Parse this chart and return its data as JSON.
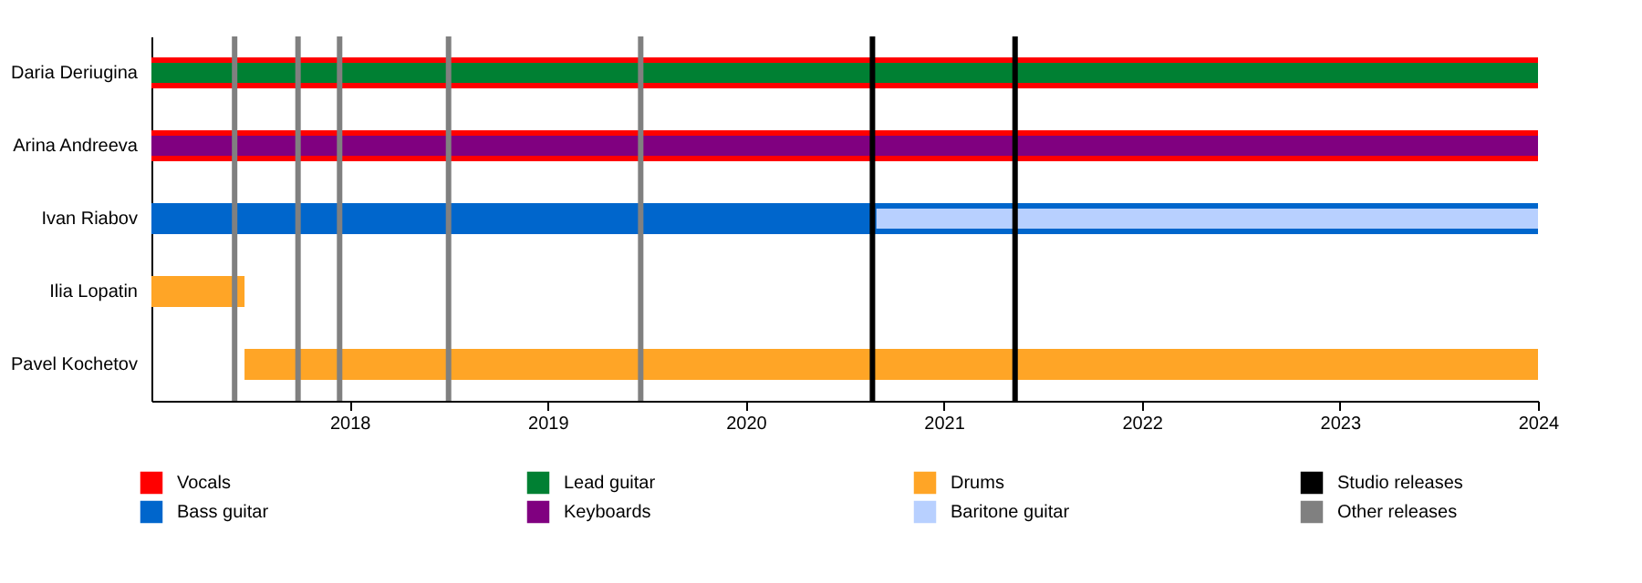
{
  "chart_data": {
    "type": "bar",
    "orientation": "horizontal",
    "categories": [
      "Daria Deriugina",
      "Arina Andreeva",
      "Ivan Riabov",
      "Ilia Lopatin",
      "Pavel Kochetov"
    ],
    "series": [
      {
        "name": "Vocals",
        "color": "#ff0000",
        "base": [
          2017,
          2017,
          null,
          null,
          null
        ],
        "values": [
          7,
          7,
          null,
          null,
          null
        ]
      },
      {
        "name": "Bass guitar",
        "color": "#0066cc",
        "base": [
          null,
          null,
          2017,
          null,
          null
        ],
        "values": [
          null,
          null,
          7,
          null,
          null
        ]
      },
      {
        "name": "Lead guitar",
        "color": "#008033",
        "base": [
          2017,
          null,
          null,
          null,
          null
        ],
        "values": [
          7,
          null,
          null,
          null,
          null
        ]
      },
      {
        "name": "Keyboards",
        "color": "#800080",
        "base": [
          null,
          2017,
          null,
          null,
          null
        ],
        "values": [
          null,
          7,
          null,
          null,
          null
        ]
      },
      {
        "name": "Drums",
        "color": "#ffa526",
        "base": [
          null,
          null,
          null,
          2017,
          2017.47
        ],
        "values": [
          null,
          null,
          null,
          0.47,
          6.53
        ]
      },
      {
        "name": "Baritone guitar",
        "color": "#b8d0ff",
        "base": [
          null,
          null,
          2020.66,
          null,
          null
        ],
        "values": [
          null,
          null,
          3.34,
          null,
          null
        ]
      }
    ],
    "ref_lines": [
      {
        "axis": "x",
        "value": 2020.64,
        "label": "Studio releases",
        "color": "#000000"
      },
      {
        "axis": "x",
        "value": 2021.36,
        "color": "#000000"
      },
      {
        "axis": "x",
        "value": 2017.42,
        "label": "Other releases",
        "color": "#808080"
      },
      {
        "axis": "x",
        "value": 2017.74,
        "color": "#808080"
      },
      {
        "axis": "x",
        "value": 2017.95,
        "color": "#808080"
      },
      {
        "axis": "x",
        "value": 2018.5,
        "color": "#808080"
      },
      {
        "axis": "x",
        "value": 2019.47,
        "color": "#808080"
      }
    ],
    "xlim": [
      2017,
      2024
    ],
    "xticks": [
      2018,
      2019,
      2020,
      2021,
      2022,
      2023,
      2024
    ],
    "grid": false,
    "legend": "bottom"
  }
}
